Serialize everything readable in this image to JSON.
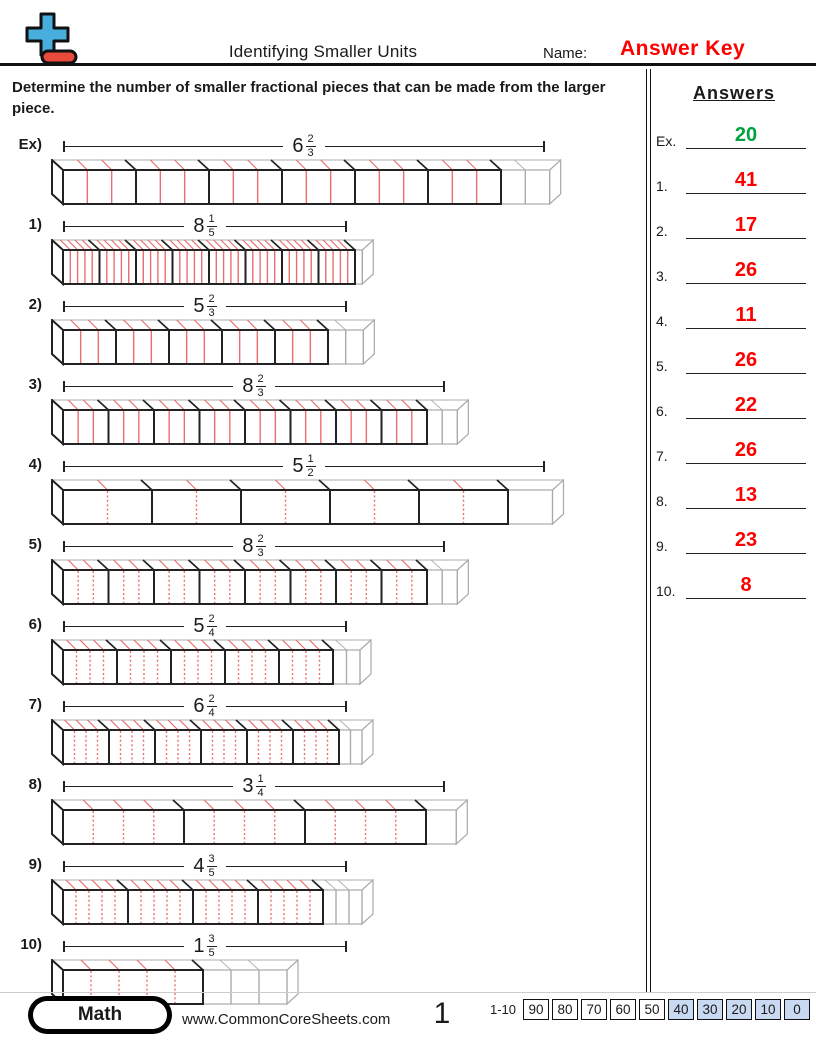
{
  "header": {
    "title": "Identifying Smaller Units",
    "name_label": "Name:",
    "answer_key": "Answer Key"
  },
  "instructions": "Determine the number of smaller fractional pieces that can be made from the larger piece.",
  "problems": [
    {
      "label": "Ex)",
      "whole": 6,
      "numerator": 2,
      "denominator": 3,
      "bracket_w": 482,
      "unit_w": 73,
      "dotted": false
    },
    {
      "label": "1)",
      "whole": 8,
      "numerator": 1,
      "denominator": 5,
      "bracket_w": 284,
      "unit_w": 36.5,
      "dotted": false
    },
    {
      "label": "2)",
      "whole": 5,
      "numerator": 2,
      "denominator": 3,
      "bracket_w": 284,
      "unit_w": 53,
      "dotted": false
    },
    {
      "label": "3)",
      "whole": 8,
      "numerator": 2,
      "denominator": 3,
      "bracket_w": 382,
      "unit_w": 45.5,
      "dotted": false
    },
    {
      "label": "4)",
      "whole": 5,
      "numerator": 1,
      "denominator": 2,
      "bracket_w": 482,
      "unit_w": 89,
      "dotted": true
    },
    {
      "label": "5)",
      "whole": 8,
      "numerator": 2,
      "denominator": 3,
      "bracket_w": 382,
      "unit_w": 45.5,
      "dotted": true
    },
    {
      "label": "6)",
      "whole": 5,
      "numerator": 2,
      "denominator": 4,
      "bracket_w": 284,
      "unit_w": 54,
      "dotted": true
    },
    {
      "label": "7)",
      "whole": 6,
      "numerator": 2,
      "denominator": 4,
      "bracket_w": 284,
      "unit_w": 46,
      "dotted": true
    },
    {
      "label": "8)",
      "whole": 3,
      "numerator": 1,
      "denominator": 4,
      "bracket_w": 382,
      "unit_w": 121,
      "dotted": true
    },
    {
      "label": "9)",
      "whole": 4,
      "numerator": 3,
      "denominator": 5,
      "bracket_w": 284,
      "unit_w": 65,
      "dotted": true
    },
    {
      "label": "10)",
      "whole": 1,
      "numerator": 3,
      "denominator": 5,
      "bracket_w": 284,
      "unit_w": 140,
      "dotted": true
    }
  ],
  "answers": {
    "title": "Answers",
    "items": [
      {
        "label": "Ex.",
        "value": "20",
        "color": "#00a33e"
      },
      {
        "label": "1.",
        "value": "41",
        "color": "#fe0000"
      },
      {
        "label": "2.",
        "value": "17",
        "color": "#fe0000"
      },
      {
        "label": "3.",
        "value": "26",
        "color": "#fe0000"
      },
      {
        "label": "4.",
        "value": "11",
        "color": "#fe0000"
      },
      {
        "label": "5.",
        "value": "26",
        "color": "#fe0000"
      },
      {
        "label": "6.",
        "value": "22",
        "color": "#fe0000"
      },
      {
        "label": "7.",
        "value": "26",
        "color": "#fe0000"
      },
      {
        "label": "8.",
        "value": "13",
        "color": "#fe0000"
      },
      {
        "label": "9.",
        "value": "23",
        "color": "#fe0000"
      },
      {
        "label": "10.",
        "value": "8",
        "color": "#fe0000"
      }
    ]
  },
  "footer": {
    "brand": "Math",
    "website": "www.CommonCoreSheets.com",
    "page": "1",
    "score_label": "1-10",
    "scores": [
      "90",
      "80",
      "70",
      "60",
      "50",
      "40",
      "30",
      "20",
      "10",
      "0"
    ]
  },
  "colors": {
    "answer_key_red": "#fe0000",
    "divider_red": "#e96e6e",
    "dark_outline": "#222222",
    "light_outline": "#a9a9a9",
    "score_cell_blue": "#c9d9f1",
    "logo_blue": "#47aede",
    "logo_red": "#e84b3c"
  }
}
